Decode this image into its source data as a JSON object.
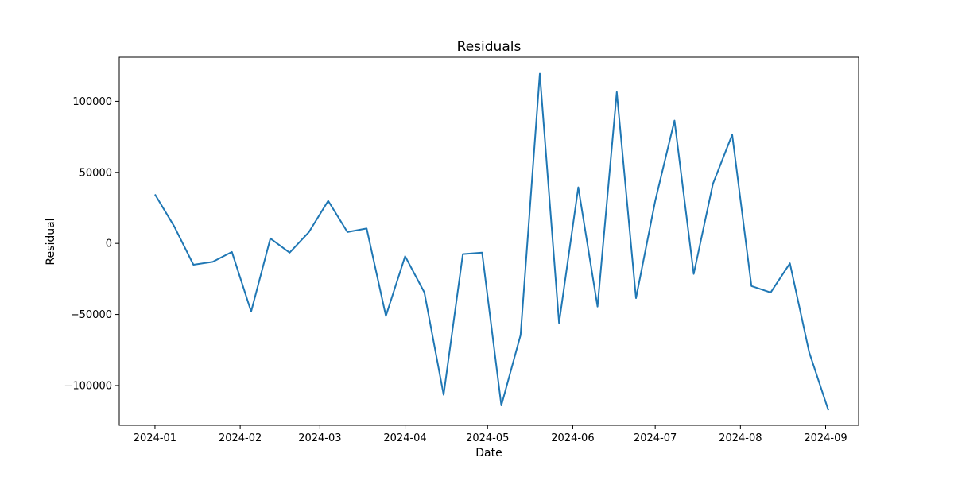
{
  "chart_data": {
    "type": "line",
    "title": "Residuals",
    "xlabel": "Date",
    "ylabel": "Residual",
    "x_ticks": [
      "2024-01-01",
      "2024-02-01",
      "2024-03-01",
      "2024-04-01",
      "2024-05-01",
      "2024-06-01",
      "2024-07-01",
      "2024-08-01",
      "2024-09-01"
    ],
    "x_tick_labels": [
      "2024-01",
      "2024-02",
      "2024-03",
      "2024-04",
      "2024-05",
      "2024-06",
      "2024-07",
      "2024-08",
      "2024-09"
    ],
    "y_ticks": [
      -100000,
      -50000,
      0,
      50000,
      100000
    ],
    "y_tick_labels": [
      "−100000",
      "−50000",
      "0",
      "50000",
      "100000"
    ],
    "xlim": [
      "2023-12-19",
      "2024-09-13"
    ],
    "ylim": [
      -128000,
      131000
    ],
    "grid": false,
    "series": [
      {
        "color": "#1f77b4",
        "x": [
          "2024-01-01",
          "2024-01-08",
          "2024-01-15",
          "2024-01-22",
          "2024-01-29",
          "2024-02-05",
          "2024-02-12",
          "2024-02-19",
          "2024-02-26",
          "2024-03-04",
          "2024-03-11",
          "2024-03-18",
          "2024-03-25",
          "2024-04-01",
          "2024-04-08",
          "2024-04-15",
          "2024-04-22",
          "2024-04-29",
          "2024-05-06",
          "2024-05-13",
          "2024-05-20",
          "2024-05-27",
          "2024-06-03",
          "2024-06-10",
          "2024-06-17",
          "2024-06-24",
          "2024-07-01",
          "2024-07-08",
          "2024-07-15",
          "2024-07-22",
          "2024-07-29",
          "2024-08-05",
          "2024-08-12",
          "2024-08-19",
          "2024-08-26",
          "2024-09-02"
        ],
        "values": [
          34500,
          12000,
          -15000,
          -13000,
          -6000,
          -48000,
          3500,
          -6500,
          8000,
          30000,
          8000,
          10500,
          -51000,
          -9000,
          -34500,
          -106500,
          -7500,
          -6500,
          -114000,
          -64500,
          119500,
          -56000,
          39500,
          -44500,
          106500,
          -38500,
          30000,
          86500,
          -21500,
          42000,
          76500,
          -30000,
          -34500,
          -14000,
          -76500,
          -117500
        ]
      }
    ]
  }
}
